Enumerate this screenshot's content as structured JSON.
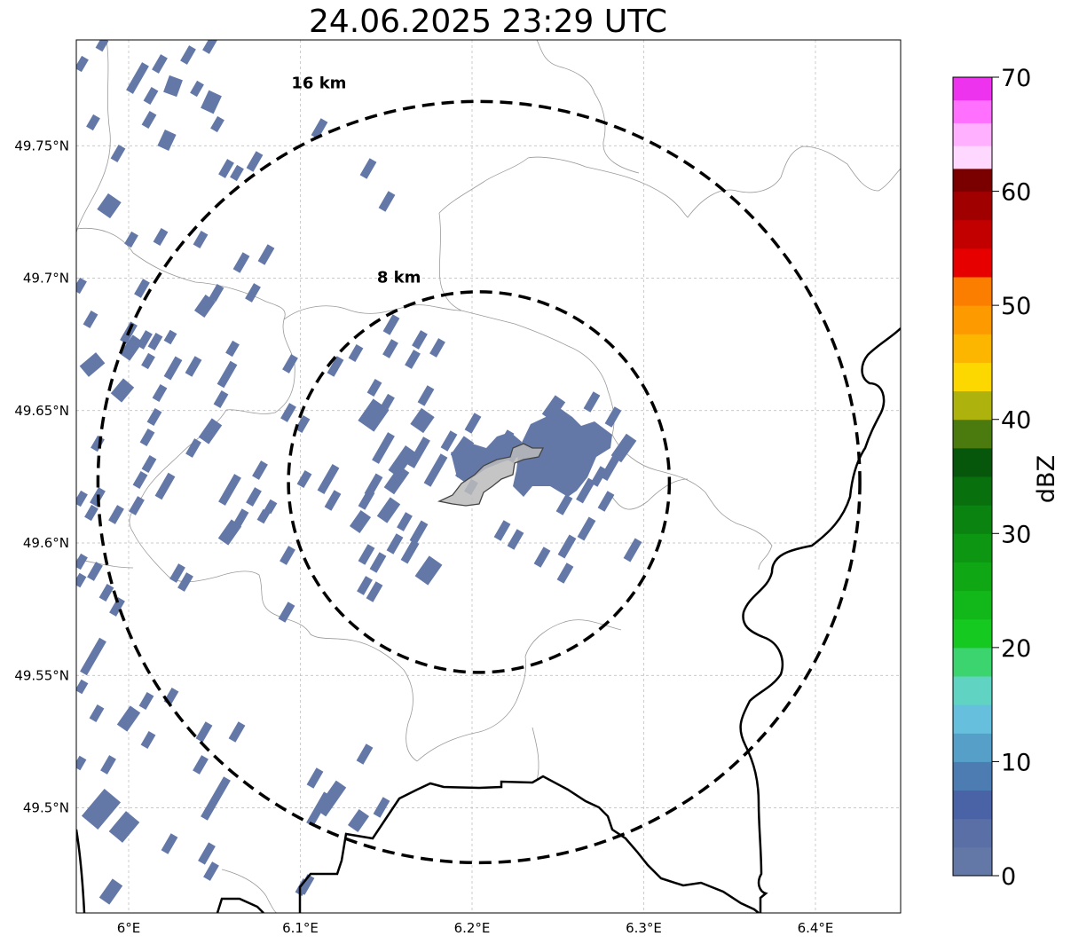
{
  "title": "24.06.2025 23:29 UTC",
  "map": {
    "lon_range": [
      5.97,
      6.45
    ],
    "lat_range": [
      49.46,
      49.79
    ],
    "x_ticks": [
      {
        "lon": 6.0,
        "label": "6°E"
      },
      {
        "lon": 6.1,
        "label": "6.1°E"
      },
      {
        "lon": 6.2,
        "label": "6.2°E"
      },
      {
        "lon": 6.3,
        "label": "6.3°E"
      },
      {
        "lon": 6.4,
        "label": "6.4°E"
      }
    ],
    "y_ticks": [
      {
        "lat": 49.75,
        "label": "49.75°N"
      },
      {
        "lat": 49.7,
        "label": "49.7°N"
      },
      {
        "lat": 49.65,
        "label": "49.65°N"
      },
      {
        "lat": 49.6,
        "label": "49.6°N"
      },
      {
        "lat": 49.55,
        "label": "49.55°N"
      },
      {
        "lat": 49.5,
        "label": "49.5°N"
      }
    ],
    "gridlines": true,
    "center": {
      "lon": 6.204,
      "lat": 49.623
    },
    "rings": [
      {
        "radius_km": 16,
        "label": "16 km"
      },
      {
        "radius_km": 8,
        "label": "8 km"
      }
    ],
    "echo_color": "#6478a8",
    "echo_dbz": 0,
    "city_fill": "#bbbbbb"
  },
  "colorbar": {
    "label": "dBZ",
    "min": 0,
    "max": 70,
    "ticks": [
      "0",
      "10",
      "20",
      "30",
      "40",
      "50",
      "60",
      "70"
    ],
    "colors": [
      "#6478a8",
      "#5a6fa6",
      "#4a62a6",
      "#4d7cb3",
      "#569fc8",
      "#66c0dd",
      "#60d3c2",
      "#3bd46f",
      "#16c921",
      "#12b719",
      "#0fa814",
      "#0d9612",
      "#0b8310",
      "#08700d",
      "#06570b",
      "#4b7a0e",
      "#adb20c",
      "#fcd800",
      "#fcb600",
      "#fc9a00",
      "#fc7e00",
      "#e60000",
      "#c20000",
      "#a00000",
      "#7a0000",
      "#ffd8ff",
      "#ffb0ff",
      "#ff70ff",
      "#ee33ee"
    ]
  }
}
